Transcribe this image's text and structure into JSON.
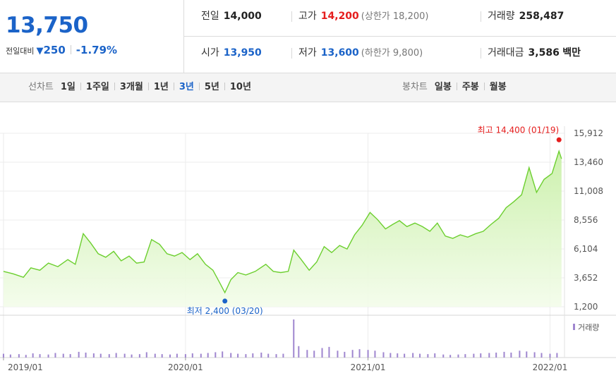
{
  "quote": {
    "price": "13,750",
    "change_label": "전일대비",
    "change_icon": "down-triangle-icon",
    "change_amount": "250",
    "change_rate": "-1.79%",
    "prev_close_label": "전일",
    "prev_close": "14,000",
    "high_label": "고가",
    "high": "14,200",
    "upper_limit_label": "(상한가",
    "upper_limit": "18,200)",
    "volume_label": "거래량",
    "volume": "258,487",
    "open_label": "시가",
    "open": "13,950",
    "low_label": "저가",
    "low": "13,600",
    "lower_limit_label": "(하한가",
    "lower_limit": "9,800)",
    "value_label": "거래대금",
    "value": "3,586",
    "value_unit": "백만"
  },
  "tabs": {
    "line_label": "선차트",
    "line_tabs": [
      "1일",
      "1주일",
      "3개월",
      "1년",
      "3년",
      "5년",
      "10년"
    ],
    "active_line_tab": "3년",
    "candle_label": "봉차트",
    "candle_tabs": [
      "일봉",
      "주봉",
      "월봉"
    ]
  },
  "colors": {
    "up": "#e51d1d",
    "down": "#1b63c8",
    "line": "#6ccf2f",
    "fill": "#dcf5c8",
    "volume": "#9f86cf"
  },
  "chart_data": {
    "type": "area",
    "x_labels": [
      "2019/01",
      "2020/01",
      "2021/01",
      "2022/01"
    ],
    "y_ticks": [
      "15,912",
      "13,460",
      "11,008",
      "8,556",
      "6,104",
      "3,652",
      "1,200"
    ],
    "ylim": [
      1200,
      15912
    ],
    "grid": true,
    "max_label": "최고 14,400 (01/19)",
    "min_label": "최저 2,400 (03/20)",
    "volume_legend": "거래량",
    "price": [
      [
        "2019-01-01",
        4200
      ],
      [
        "2019-01-20",
        4000
      ],
      [
        "2019-02-10",
        3700
      ],
      [
        "2019-02-25",
        4500
      ],
      [
        "2019-03-15",
        4300
      ],
      [
        "2019-04-01",
        4900
      ],
      [
        "2019-04-20",
        4600
      ],
      [
        "2019-05-10",
        5200
      ],
      [
        "2019-05-25",
        4800
      ],
      [
        "2019-06-10",
        7400
      ],
      [
        "2019-06-25",
        6600
      ],
      [
        "2019-07-10",
        5700
      ],
      [
        "2019-07-25",
        5400
      ],
      [
        "2019-08-10",
        5900
      ],
      [
        "2019-08-25",
        5100
      ],
      [
        "2019-09-10",
        5500
      ],
      [
        "2019-09-25",
        4900
      ],
      [
        "2019-10-10",
        5000
      ],
      [
        "2019-10-25",
        6900
      ],
      [
        "2019-11-10",
        6500
      ],
      [
        "2019-11-25",
        5700
      ],
      [
        "2019-12-10",
        5500
      ],
      [
        "2019-12-25",
        5800
      ],
      [
        "2020-01-10",
        5200
      ],
      [
        "2020-01-25",
        5700
      ],
      [
        "2020-02-10",
        4800
      ],
      [
        "2020-02-25",
        4300
      ],
      [
        "2020-03-10",
        3200
      ],
      [
        "2020-03-20",
        2400
      ],
      [
        "2020-04-01",
        3500
      ],
      [
        "2020-04-15",
        4100
      ],
      [
        "2020-05-01",
        3900
      ],
      [
        "2020-05-20",
        4200
      ],
      [
        "2020-06-10",
        4800
      ],
      [
        "2020-06-25",
        4200
      ],
      [
        "2020-07-10",
        4100
      ],
      [
        "2020-07-25",
        4200
      ],
      [
        "2020-08-05",
        6000
      ],
      [
        "2020-08-20",
        5200
      ],
      [
        "2020-09-05",
        4300
      ],
      [
        "2020-09-20",
        5000
      ],
      [
        "2020-10-05",
        6300
      ],
      [
        "2020-10-20",
        5800
      ],
      [
        "2020-11-05",
        6400
      ],
      [
        "2020-11-20",
        6100
      ],
      [
        "2020-12-05",
        7300
      ],
      [
        "2020-12-20",
        8100
      ],
      [
        "2021-01-05",
        9200
      ],
      [
        "2021-01-20",
        8600
      ],
      [
        "2021-02-05",
        7800
      ],
      [
        "2021-02-20",
        8200
      ],
      [
        "2021-03-05",
        8500
      ],
      [
        "2021-03-20",
        8000
      ],
      [
        "2021-04-05",
        8300
      ],
      [
        "2021-04-20",
        8000
      ],
      [
        "2021-05-05",
        7600
      ],
      [
        "2021-05-20",
        8300
      ],
      [
        "2021-06-05",
        7200
      ],
      [
        "2021-06-20",
        7000
      ],
      [
        "2021-07-05",
        7300
      ],
      [
        "2021-07-20",
        7100
      ],
      [
        "2021-08-05",
        7400
      ],
      [
        "2021-08-20",
        7600
      ],
      [
        "2021-09-05",
        8200
      ],
      [
        "2021-09-20",
        8700
      ],
      [
        "2021-10-05",
        9600
      ],
      [
        "2021-10-20",
        10100
      ],
      [
        "2021-11-05",
        10700
      ],
      [
        "2021-11-20",
        13000
      ],
      [
        "2021-12-05",
        10900
      ],
      [
        "2021-12-20",
        12000
      ],
      [
        "2022-01-05",
        12500
      ],
      [
        "2022-01-19",
        14400
      ],
      [
        "2022-01-24",
        13750
      ]
    ],
    "volume": [
      [
        "2019-01-01",
        0.1
      ],
      [
        "2019-01-15",
        0.08
      ],
      [
        "2019-02-01",
        0.09
      ],
      [
        "2019-02-15",
        0.07
      ],
      [
        "2019-03-01",
        0.11
      ],
      [
        "2019-03-15",
        0.09
      ],
      [
        "2019-04-01",
        0.08
      ],
      [
        "2019-04-15",
        0.12
      ],
      [
        "2019-05-01",
        0.1
      ],
      [
        "2019-05-15",
        0.09
      ],
      [
        "2019-06-01",
        0.15
      ],
      [
        "2019-06-15",
        0.13
      ],
      [
        "2019-07-01",
        0.11
      ],
      [
        "2019-07-15",
        0.1
      ],
      [
        "2019-08-01",
        0.09
      ],
      [
        "2019-08-15",
        0.12
      ],
      [
        "2019-09-01",
        0.1
      ],
      [
        "2019-09-15",
        0.08
      ],
      [
        "2019-10-01",
        0.09
      ],
      [
        "2019-10-15",
        0.14
      ],
      [
        "2019-11-01",
        0.1
      ],
      [
        "2019-11-15",
        0.09
      ],
      [
        "2019-12-01",
        0.08
      ],
      [
        "2019-12-15",
        0.1
      ],
      [
        "2020-01-01",
        0.09
      ],
      [
        "2020-01-15",
        0.11
      ],
      [
        "2020-02-01",
        0.1
      ],
      [
        "2020-02-15",
        0.12
      ],
      [
        "2020-03-01",
        0.14
      ],
      [
        "2020-03-15",
        0.16
      ],
      [
        "2020-04-01",
        0.12
      ],
      [
        "2020-04-15",
        0.1
      ],
      [
        "2020-05-01",
        0.09
      ],
      [
        "2020-05-15",
        0.11
      ],
      [
        "2020-06-01",
        0.13
      ],
      [
        "2020-06-15",
        0.1
      ],
      [
        "2020-07-01",
        0.09
      ],
      [
        "2020-07-15",
        0.1
      ],
      [
        "2020-08-05",
        1.0
      ],
      [
        "2020-08-15",
        0.3
      ],
      [
        "2020-09-01",
        0.2
      ],
      [
        "2020-09-15",
        0.18
      ],
      [
        "2020-10-01",
        0.25
      ],
      [
        "2020-10-15",
        0.28
      ],
      [
        "2020-11-01",
        0.18
      ],
      [
        "2020-11-15",
        0.15
      ],
      [
        "2020-12-01",
        0.2
      ],
      [
        "2020-12-15",
        0.22
      ],
      [
        "2021-01-01",
        0.2
      ],
      [
        "2021-01-15",
        0.18
      ],
      [
        "2021-02-01",
        0.14
      ],
      [
        "2021-02-15",
        0.12
      ],
      [
        "2021-03-01",
        0.11
      ],
      [
        "2021-03-15",
        0.1
      ],
      [
        "2021-04-01",
        0.12
      ],
      [
        "2021-04-15",
        0.1
      ],
      [
        "2021-05-01",
        0.09
      ],
      [
        "2021-05-15",
        0.11
      ],
      [
        "2021-06-01",
        0.08
      ],
      [
        "2021-06-15",
        0.07
      ],
      [
        "2021-07-01",
        0.08
      ],
      [
        "2021-07-15",
        0.09
      ],
      [
        "2021-08-01",
        0.1
      ],
      [
        "2021-08-15",
        0.11
      ],
      [
        "2021-09-01",
        0.12
      ],
      [
        "2021-09-15",
        0.13
      ],
      [
        "2021-10-01",
        0.15
      ],
      [
        "2021-10-15",
        0.13
      ],
      [
        "2021-11-01",
        0.18
      ],
      [
        "2021-11-15",
        0.16
      ],
      [
        "2021-12-01",
        0.14
      ],
      [
        "2021-12-15",
        0.12
      ],
      [
        "2022-01-01",
        0.1
      ],
      [
        "2022-01-15",
        0.12
      ]
    ]
  }
}
